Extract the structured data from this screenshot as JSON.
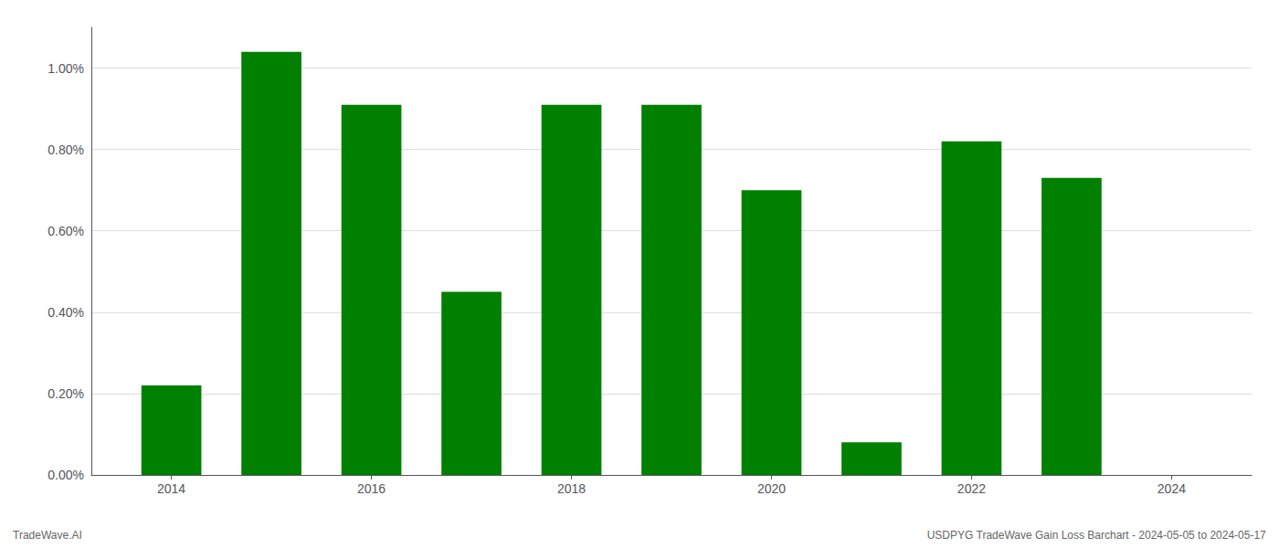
{
  "chart_data": {
    "type": "bar",
    "x": [
      2014,
      2015,
      2016,
      2017,
      2018,
      2019,
      2020,
      2021,
      2022,
      2023
    ],
    "values": [
      0.0022,
      0.0104,
      0.0091,
      0.0045,
      0.0091,
      0.0091,
      0.007,
      0.0008,
      0.0082,
      0.0073
    ],
    "color": "#008000",
    "xlim": [
      2013.2,
      2024.8
    ],
    "xticks": [
      2014,
      2016,
      2018,
      2020,
      2022,
      2024
    ],
    "ylim": [
      0,
      0.011
    ],
    "yticks": [
      {
        "value": 0.0,
        "label": "0.00%"
      },
      {
        "value": 0.002,
        "label": "0.20%"
      },
      {
        "value": 0.004,
        "label": "0.40%"
      },
      {
        "value": 0.006,
        "label": "0.60%"
      },
      {
        "value": 0.008,
        "label": "0.80%"
      },
      {
        "value": 0.01,
        "label": "1.00%"
      }
    ],
    "grid": true,
    "annotations": [
      "TradeWave.AI",
      "USDPYG TradeWave Gain Loss Barchart - 2024-05-05 to 2024-05-17"
    ]
  }
}
